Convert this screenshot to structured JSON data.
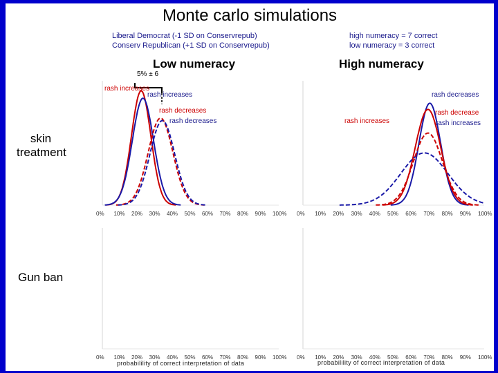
{
  "title": "Monte carlo simulations",
  "legend": {
    "line1": "Liberal Democrat (-1 SD on Conservrepub)",
    "line2": "Conserv Republican (+1 SD on Conservrepub)",
    "numeracy1": "high numeracy = 7 correct",
    "numeracy2": "low numeracy =  3 correct"
  },
  "panels": {
    "low": "Low numeracy",
    "high": "High numeracy"
  },
  "rows": {
    "skin1": "skin",
    "skin2": "treatment",
    "gun": "Gun ban"
  },
  "bracket_label": "5% ± 6",
  "annotations": {
    "low_rash_increases_red": "rash increases",
    "low_rash_increases_blue": "rash increases",
    "low_rash_decreases_red": "rash decreases",
    "low_rash_decreases_blue": "rash decreases",
    "high_rash_decreases_blue": "rash decreases",
    "high_rash_decrease_red": "rash decrease",
    "high_rash_increases_blue": "rash increases",
    "high_rash_increases_red": "rash increases"
  },
  "x_axis_label": "probabilility of correct interpretation of data",
  "colors": {
    "red": "#cc0000",
    "blue": "#1a1aa8",
    "frame": "#0000cc"
  },
  "chart_data": {
    "type": "line",
    "title": "Monte carlo simulations",
    "xlabel": "probabilility of correct interpretation of data",
    "ylabel": "",
    "xlim": [
      0,
      100
    ],
    "x_ticks": [
      "0%",
      "10%",
      "20%",
      "30%",
      "40%",
      "50%",
      "60%",
      "70%",
      "80%",
      "90%",
      "100%"
    ],
    "panels": [
      {
        "name": "skin treatment / Low numeracy",
        "series": [
          {
            "name": "Liberal Democrat, rash increases",
            "color": "red",
            "style": "solid",
            "mean": 22,
            "sd": 5.5,
            "peak": 0.92
          },
          {
            "name": "Conserv Republican, rash increases",
            "color": "blue",
            "style": "solid",
            "mean": 23,
            "sd": 6,
            "peak": 0.86
          },
          {
            "name": "Liberal Democrat, rash decreases",
            "color": "red",
            "style": "dashed",
            "mean": 33,
            "sd": 7,
            "peak": 0.7
          },
          {
            "name": "Conserv Republican, rash decreases",
            "color": "blue",
            "style": "dashed",
            "mean": 34,
            "sd": 7,
            "peak": 0.68
          }
        ]
      },
      {
        "name": "skin treatment / High numeracy",
        "series": [
          {
            "name": "Conserv Republican, rash decreases",
            "color": "blue",
            "style": "solid",
            "mean": 70,
            "sd": 6,
            "peak": 0.82
          },
          {
            "name": "Liberal Democrat, rash decrease",
            "color": "red",
            "style": "solid",
            "mean": 69,
            "sd": 7,
            "peak": 0.77
          },
          {
            "name": "Conserv Republican, rash increases",
            "color": "blue",
            "style": "dashed",
            "mean": 67,
            "sd": 13,
            "peak": 0.42
          },
          {
            "name": "Liberal Democrat, rash increases",
            "color": "red",
            "style": "dashed",
            "mean": 69,
            "sd": 8,
            "peak": 0.58
          }
        ]
      },
      {
        "name": "Gun ban / Low numeracy",
        "series": []
      },
      {
        "name": "Gun ban / High numeracy",
        "series": []
      }
    ]
  }
}
